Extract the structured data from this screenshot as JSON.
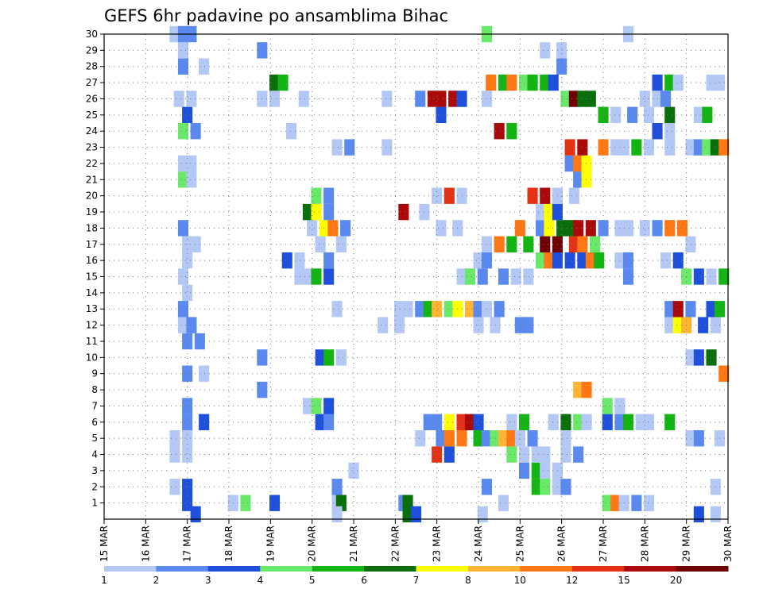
{
  "chart_data": {
    "type": "heatmap",
    "title": "GEFS 6hr padavine po ansamblima Bihac",
    "xlabel": "",
    "ylabel": "",
    "x_ticks": [
      "15 MAR",
      "16 MAR",
      "17 MAR",
      "18 MAR",
      "19 MAR",
      "20 MAR",
      "21 MAR",
      "22 MAR",
      "23 MAR",
      "24 MAR",
      "25 MAR",
      "26 MAR",
      "27 MAR",
      "28 MAR",
      "29 MAR",
      "30 MAR"
    ],
    "y_ticks": [
      "1",
      "2",
      "3",
      "4",
      "5",
      "6",
      "7",
      "8",
      "9",
      "10",
      "11",
      "12",
      "13",
      "14",
      "15",
      "16",
      "17",
      "18",
      "19",
      "20",
      "21",
      "22",
      "23",
      "24",
      "25",
      "26",
      "27",
      "28",
      "29",
      "30"
    ],
    "x_range_days": [
      0,
      15
    ],
    "y_range": [
      0,
      30
    ],
    "grid": "dotted",
    "colorbar": {
      "labels": [
        "1",
        "2",
        "3",
        "4",
        "5",
        "6",
        "7",
        "8",
        "10",
        "12",
        "15",
        "20"
      ],
      "colors": [
        "#b4c8f5",
        "#5a8af0",
        "#1e50dc",
        "#6ae86a",
        "#14b414",
        "#0a6e0a",
        "#ffff00",
        "#ffb432",
        "#ff7814",
        "#e63214",
        "#aa0a0a",
        "#6e0000"
      ]
    },
    "cells": [
      [
        2.0,
        1,
        3
      ],
      [
        3.1,
        1,
        1
      ],
      [
        3.4,
        1,
        4
      ],
      [
        4.1,
        1,
        3
      ],
      [
        5.6,
        1,
        1
      ],
      [
        5.6,
        2,
        2
      ],
      [
        5.7,
        1,
        6
      ],
      [
        7.2,
        1,
        2
      ],
      [
        7.3,
        1,
        6
      ],
      [
        9.6,
        1,
        1
      ],
      [
        12.1,
        1,
        4
      ],
      [
        12.3,
        1,
        9
      ],
      [
        12.5,
        1,
        1
      ],
      [
        12.8,
        1,
        2
      ],
      [
        13.1,
        1,
        1
      ],
      [
        1.7,
        2,
        1
      ],
      [
        2.0,
        2,
        3
      ],
      [
        9.2,
        2,
        2
      ],
      [
        10.4,
        2,
        5
      ],
      [
        10.6,
        2,
        4
      ],
      [
        10.9,
        2,
        1
      ],
      [
        11.1,
        2,
        2
      ],
      [
        14.7,
        2,
        1
      ],
      [
        10.1,
        3,
        2
      ],
      [
        10.4,
        3,
        5
      ],
      [
        10.6,
        3,
        1
      ],
      [
        10.9,
        3,
        1
      ],
      [
        6.0,
        3,
        1
      ],
      [
        1.7,
        4,
        1
      ],
      [
        2.0,
        4,
        1
      ],
      [
        8.0,
        4,
        10
      ],
      [
        8.3,
        4,
        3
      ],
      [
        9.8,
        4,
        4
      ],
      [
        10.1,
        4,
        1
      ],
      [
        10.4,
        4,
        1
      ],
      [
        10.6,
        4,
        1
      ],
      [
        11.1,
        4,
        1
      ],
      [
        11.4,
        4,
        2
      ],
      [
        1.7,
        5,
        1
      ],
      [
        2.0,
        5,
        1
      ],
      [
        7.6,
        5,
        1
      ],
      [
        8.1,
        5,
        2
      ],
      [
        8.3,
        5,
        9
      ],
      [
        8.6,
        5,
        9
      ],
      [
        9.0,
        5,
        5
      ],
      [
        9.2,
        5,
        2
      ],
      [
        9.4,
        5,
        4
      ],
      [
        9.6,
        5,
        8
      ],
      [
        9.8,
        5,
        9
      ],
      [
        10.0,
        5,
        1
      ],
      [
        10.3,
        5,
        2
      ],
      [
        11.1,
        5,
        1
      ],
      [
        14.1,
        5,
        1
      ],
      [
        14.3,
        5,
        2
      ],
      [
        14.8,
        5,
        1
      ],
      [
        2.0,
        6,
        2
      ],
      [
        2.4,
        6,
        3
      ],
      [
        5.2,
        6,
        3
      ],
      [
        5.4,
        6,
        2
      ],
      [
        7.8,
        6,
        2
      ],
      [
        8.0,
        6,
        2
      ],
      [
        8.3,
        6,
        7
      ],
      [
        8.6,
        6,
        10
      ],
      [
        8.8,
        6,
        11
      ],
      [
        9.0,
        6,
        3
      ],
      [
        9.8,
        6,
        1
      ],
      [
        10.1,
        6,
        5
      ],
      [
        10.8,
        6,
        1
      ],
      [
        11.1,
        6,
        6
      ],
      [
        11.4,
        6,
        4
      ],
      [
        11.6,
        6,
        1
      ],
      [
        12.1,
        6,
        3
      ],
      [
        12.4,
        6,
        2
      ],
      [
        12.6,
        6,
        5
      ],
      [
        12.9,
        6,
        1
      ],
      [
        13.1,
        6,
        1
      ],
      [
        13.6,
        6,
        5
      ],
      [
        2.0,
        7,
        2
      ],
      [
        4.9,
        7,
        1
      ],
      [
        5.1,
        7,
        4
      ],
      [
        5.4,
        7,
        3
      ],
      [
        12.1,
        7,
        4
      ],
      [
        12.4,
        7,
        1
      ],
      [
        3.8,
        8,
        2
      ],
      [
        11.4,
        8,
        8
      ],
      [
        11.6,
        8,
        9
      ],
      [
        2.0,
        9,
        2
      ],
      [
        2.4,
        9,
        1
      ],
      [
        14.9,
        9,
        9
      ],
      [
        3.8,
        10,
        2
      ],
      [
        5.2,
        10,
        3
      ],
      [
        5.4,
        10,
        5
      ],
      [
        5.7,
        10,
        1
      ],
      [
        14.1,
        10,
        1
      ],
      [
        14.3,
        10,
        3
      ],
      [
        14.6,
        10,
        6
      ],
      [
        2.0,
        11,
        2
      ],
      [
        2.3,
        11,
        2
      ],
      [
        1.9,
        12,
        1
      ],
      [
        2.1,
        12,
        2
      ],
      [
        6.7,
        12,
        1
      ],
      [
        7.1,
        12,
        1
      ],
      [
        9.0,
        12,
        1
      ],
      [
        9.4,
        12,
        1
      ],
      [
        10.0,
        12,
        2
      ],
      [
        10.2,
        12,
        2
      ],
      [
        13.6,
        12,
        1
      ],
      [
        13.8,
        12,
        7
      ],
      [
        14.0,
        12,
        8
      ],
      [
        14.4,
        12,
        3
      ],
      [
        14.7,
        12,
        1
      ],
      [
        1.9,
        13,
        2
      ],
      [
        5.6,
        13,
        1
      ],
      [
        7.1,
        13,
        1
      ],
      [
        7.3,
        13,
        1
      ],
      [
        7.6,
        13,
        2
      ],
      [
        7.8,
        13,
        5
      ],
      [
        8.0,
        13,
        8
      ],
      [
        8.3,
        13,
        4
      ],
      [
        8.5,
        13,
        7
      ],
      [
        8.8,
        13,
        8
      ],
      [
        9.0,
        13,
        2
      ],
      [
        9.2,
        13,
        1
      ],
      [
        9.5,
        13,
        2
      ],
      [
        13.6,
        13,
        2
      ],
      [
        13.8,
        13,
        11
      ],
      [
        14.1,
        13,
        2
      ],
      [
        14.6,
        13,
        3
      ],
      [
        14.8,
        13,
        5
      ],
      [
        2.0,
        14,
        1
      ],
      [
        1.9,
        15,
        1
      ],
      [
        4.7,
        15,
        1
      ],
      [
        4.9,
        15,
        1
      ],
      [
        5.1,
        15,
        5
      ],
      [
        5.4,
        15,
        3
      ],
      [
        8.6,
        15,
        1
      ],
      [
        8.8,
        15,
        4
      ],
      [
        9.1,
        15,
        2
      ],
      [
        9.6,
        15,
        2
      ],
      [
        9.9,
        15,
        1
      ],
      [
        10.2,
        15,
        1
      ],
      [
        12.6,
        15,
        2
      ],
      [
        14.0,
        15,
        4
      ],
      [
        14.3,
        15,
        3
      ],
      [
        14.6,
        15,
        1
      ],
      [
        14.9,
        15,
        5
      ],
      [
        2.0,
        16,
        1
      ],
      [
        4.4,
        16,
        3
      ],
      [
        4.7,
        16,
        1
      ],
      [
        5.4,
        16,
        2
      ],
      [
        9.0,
        16,
        1
      ],
      [
        9.2,
        16,
        2
      ],
      [
        10.5,
        16,
        4
      ],
      [
        10.7,
        16,
        9
      ],
      [
        10.9,
        16,
        3
      ],
      [
        11.2,
        16,
        3
      ],
      [
        11.5,
        16,
        3
      ],
      [
        11.7,
        16,
        9
      ],
      [
        11.9,
        16,
        5
      ],
      [
        12.4,
        16,
        1
      ],
      [
        12.6,
        16,
        2
      ],
      [
        13.5,
        16,
        1
      ],
      [
        13.8,
        16,
        3
      ],
      [
        2.0,
        17,
        1
      ],
      [
        2.2,
        17,
        1
      ],
      [
        5.2,
        17,
        1
      ],
      [
        5.7,
        17,
        1
      ],
      [
        9.2,
        17,
        1
      ],
      [
        9.5,
        17,
        9
      ],
      [
        9.8,
        17,
        5
      ],
      [
        10.2,
        17,
        5
      ],
      [
        10.6,
        17,
        12
      ],
      [
        10.9,
        17,
        12
      ],
      [
        11.3,
        17,
        10
      ],
      [
        11.5,
        17,
        9
      ],
      [
        11.8,
        17,
        4
      ],
      [
        14.1,
        17,
        1
      ],
      [
        1.9,
        18,
        2
      ],
      [
        5.0,
        18,
        1
      ],
      [
        5.3,
        18,
        7
      ],
      [
        5.5,
        18,
        9
      ],
      [
        5.8,
        18,
        2
      ],
      [
        8.1,
        18,
        1
      ],
      [
        8.5,
        18,
        1
      ],
      [
        10.0,
        18,
        9
      ],
      [
        10.5,
        18,
        2
      ],
      [
        10.7,
        18,
        7
      ],
      [
        11.0,
        18,
        6
      ],
      [
        11.2,
        18,
        6
      ],
      [
        11.4,
        18,
        11
      ],
      [
        11.7,
        18,
        11
      ],
      [
        12.0,
        18,
        2
      ],
      [
        12.4,
        18,
        1
      ],
      [
        12.6,
        18,
        1
      ],
      [
        13.0,
        18,
        1
      ],
      [
        13.3,
        18,
        2
      ],
      [
        13.6,
        18,
        9
      ],
      [
        13.9,
        18,
        9
      ],
      [
        4.9,
        19,
        6
      ],
      [
        5.1,
        19,
        7
      ],
      [
        5.4,
        19,
        2
      ],
      [
        7.2,
        19,
        11
      ],
      [
        7.7,
        19,
        1
      ],
      [
        10.5,
        19,
        1
      ],
      [
        10.7,
        19,
        7
      ],
      [
        10.9,
        19,
        3
      ],
      [
        5.1,
        20,
        4
      ],
      [
        5.4,
        20,
        2
      ],
      [
        8.0,
        20,
        1
      ],
      [
        8.3,
        20,
        10
      ],
      [
        8.6,
        20,
        1
      ],
      [
        10.3,
        20,
        10
      ],
      [
        10.6,
        20,
        11
      ],
      [
        10.9,
        20,
        1
      ],
      [
        11.3,
        20,
        1
      ],
      [
        1.9,
        21,
        4
      ],
      [
        2.1,
        21,
        1
      ],
      [
        11.4,
        21,
        2
      ],
      [
        11.6,
        21,
        7
      ],
      [
        1.9,
        22,
        1
      ],
      [
        2.1,
        22,
        1
      ],
      [
        11.2,
        22,
        2
      ],
      [
        11.4,
        22,
        9
      ],
      [
        11.6,
        22,
        7
      ],
      [
        5.6,
        23,
        1
      ],
      [
        5.9,
        23,
        2
      ],
      [
        6.8,
        23,
        1
      ],
      [
        11.2,
        23,
        10
      ],
      [
        11.5,
        23,
        11
      ],
      [
        12.0,
        23,
        9
      ],
      [
        12.3,
        23,
        1
      ],
      [
        12.5,
        23,
        1
      ],
      [
        12.8,
        23,
        5
      ],
      [
        13.1,
        23,
        1
      ],
      [
        13.6,
        23,
        1
      ],
      [
        14.1,
        23,
        1
      ],
      [
        14.3,
        23,
        2
      ],
      [
        14.5,
        23,
        4
      ],
      [
        14.7,
        23,
        6
      ],
      [
        14.9,
        23,
        9
      ],
      [
        1.9,
        24,
        4
      ],
      [
        2.2,
        24,
        2
      ],
      [
        4.5,
        24,
        1
      ],
      [
        9.5,
        24,
        11
      ],
      [
        9.8,
        24,
        5
      ],
      [
        13.3,
        24,
        3
      ],
      [
        13.6,
        24,
        1
      ],
      [
        2.0,
        25,
        3
      ],
      [
        8.1,
        25,
        3
      ],
      [
        12.0,
        25,
        5
      ],
      [
        12.3,
        25,
        1
      ],
      [
        12.7,
        25,
        2
      ],
      [
        13.1,
        25,
        1
      ],
      [
        13.6,
        25,
        6
      ],
      [
        14.3,
        25,
        1
      ],
      [
        14.5,
        25,
        5
      ],
      [
        1.8,
        26,
        1
      ],
      [
        2.1,
        26,
        1
      ],
      [
        3.8,
        26,
        1
      ],
      [
        4.1,
        26,
        1
      ],
      [
        4.8,
        26,
        1
      ],
      [
        6.8,
        26,
        1
      ],
      [
        7.6,
        26,
        2
      ],
      [
        7.9,
        26,
        11
      ],
      [
        8.1,
        26,
        11
      ],
      [
        8.4,
        26,
        11
      ],
      [
        8.6,
        26,
        3
      ],
      [
        9.2,
        26,
        1
      ],
      [
        11.1,
        26,
        4
      ],
      [
        11.3,
        26,
        12
      ],
      [
        11.5,
        26,
        6
      ],
      [
        11.7,
        26,
        6
      ],
      [
        13.0,
        26,
        1
      ],
      [
        13.3,
        26,
        1
      ],
      [
        13.5,
        26,
        2
      ],
      [
        4.1,
        27,
        6
      ],
      [
        4.3,
        27,
        5
      ],
      [
        9.3,
        27,
        9
      ],
      [
        9.6,
        27,
        5
      ],
      [
        9.8,
        27,
        9
      ],
      [
        10.1,
        27,
        4
      ],
      [
        10.3,
        27,
        5
      ],
      [
        10.6,
        27,
        5
      ],
      [
        10.8,
        27,
        3
      ],
      [
        13.3,
        27,
        3
      ],
      [
        13.6,
        27,
        5
      ],
      [
        13.8,
        27,
        1
      ],
      [
        14.6,
        27,
        1
      ],
      [
        14.8,
        27,
        1
      ],
      [
        1.9,
        28,
        2
      ],
      [
        2.4,
        28,
        1
      ],
      [
        11.0,
        28,
        2
      ],
      [
        1.9,
        29,
        1
      ],
      [
        3.8,
        29,
        2
      ],
      [
        10.6,
        29,
        1
      ],
      [
        11.0,
        29,
        1
      ],
      [
        1.7,
        30,
        1
      ],
      [
        1.9,
        30,
        2
      ],
      [
        2.1,
        30,
        2
      ],
      [
        9.2,
        30,
        4
      ],
      [
        12.6,
        30,
        1
      ],
      [
        7.3,
        0.3,
        6
      ],
      [
        7.5,
        0.3,
        3
      ],
      [
        9.1,
        0.3,
        1
      ],
      [
        5.6,
        0.3,
        1
      ],
      [
        2.2,
        0.3,
        3
      ],
      [
        14.3,
        0.3,
        3
      ],
      [
        14.7,
        0.3,
        1
      ]
    ]
  }
}
